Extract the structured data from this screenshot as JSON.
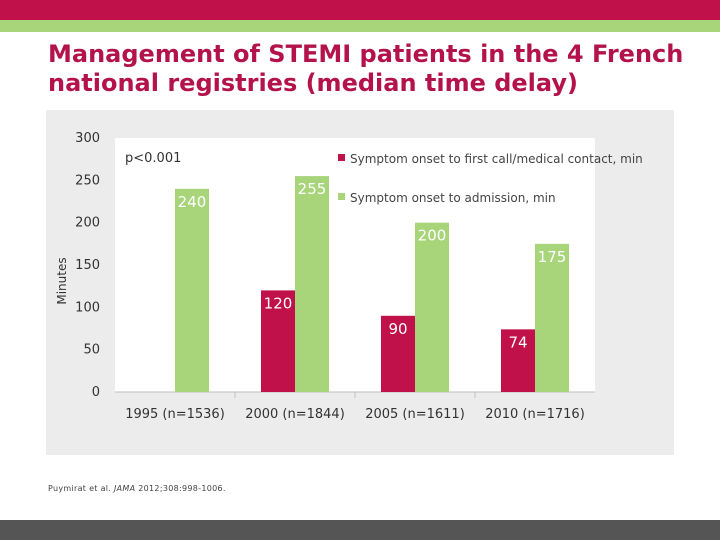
{
  "slide": {
    "title": "Management of STEMI patients in the 4 French national registries (median time delay)",
    "citation_authors": "Puymirat et al. ",
    "citation_journal": "JAMA",
    "citation_rest": " 2012;308:998-1006."
  },
  "colors": {
    "brand_red": "#c0114a",
    "brand_green": "#a8d47a",
    "bottom_bar": "#555555"
  },
  "chart_data": {
    "type": "bar",
    "ylabel": "Minutes",
    "ylim": [
      0,
      300
    ],
    "yticks": [
      0,
      50,
      100,
      150,
      200,
      250,
      300
    ],
    "annotation": "p<0.001",
    "categories": [
      "1995 (n=1536)",
      "2000 (n=1844)",
      "2005 (n=1611)",
      "2010 (n=1716)"
    ],
    "series": [
      {
        "name": "Symptom onset to first call/medical contact, min",
        "color": "#c0114a",
        "values": [
          null,
          120,
          90,
          74
        ]
      },
      {
        "name": "Symptom onset to admission, min",
        "color": "#a8d47a",
        "values": [
          240,
          255,
          200,
          175
        ]
      }
    ],
    "legend_position": "top-right",
    "grid": false
  }
}
